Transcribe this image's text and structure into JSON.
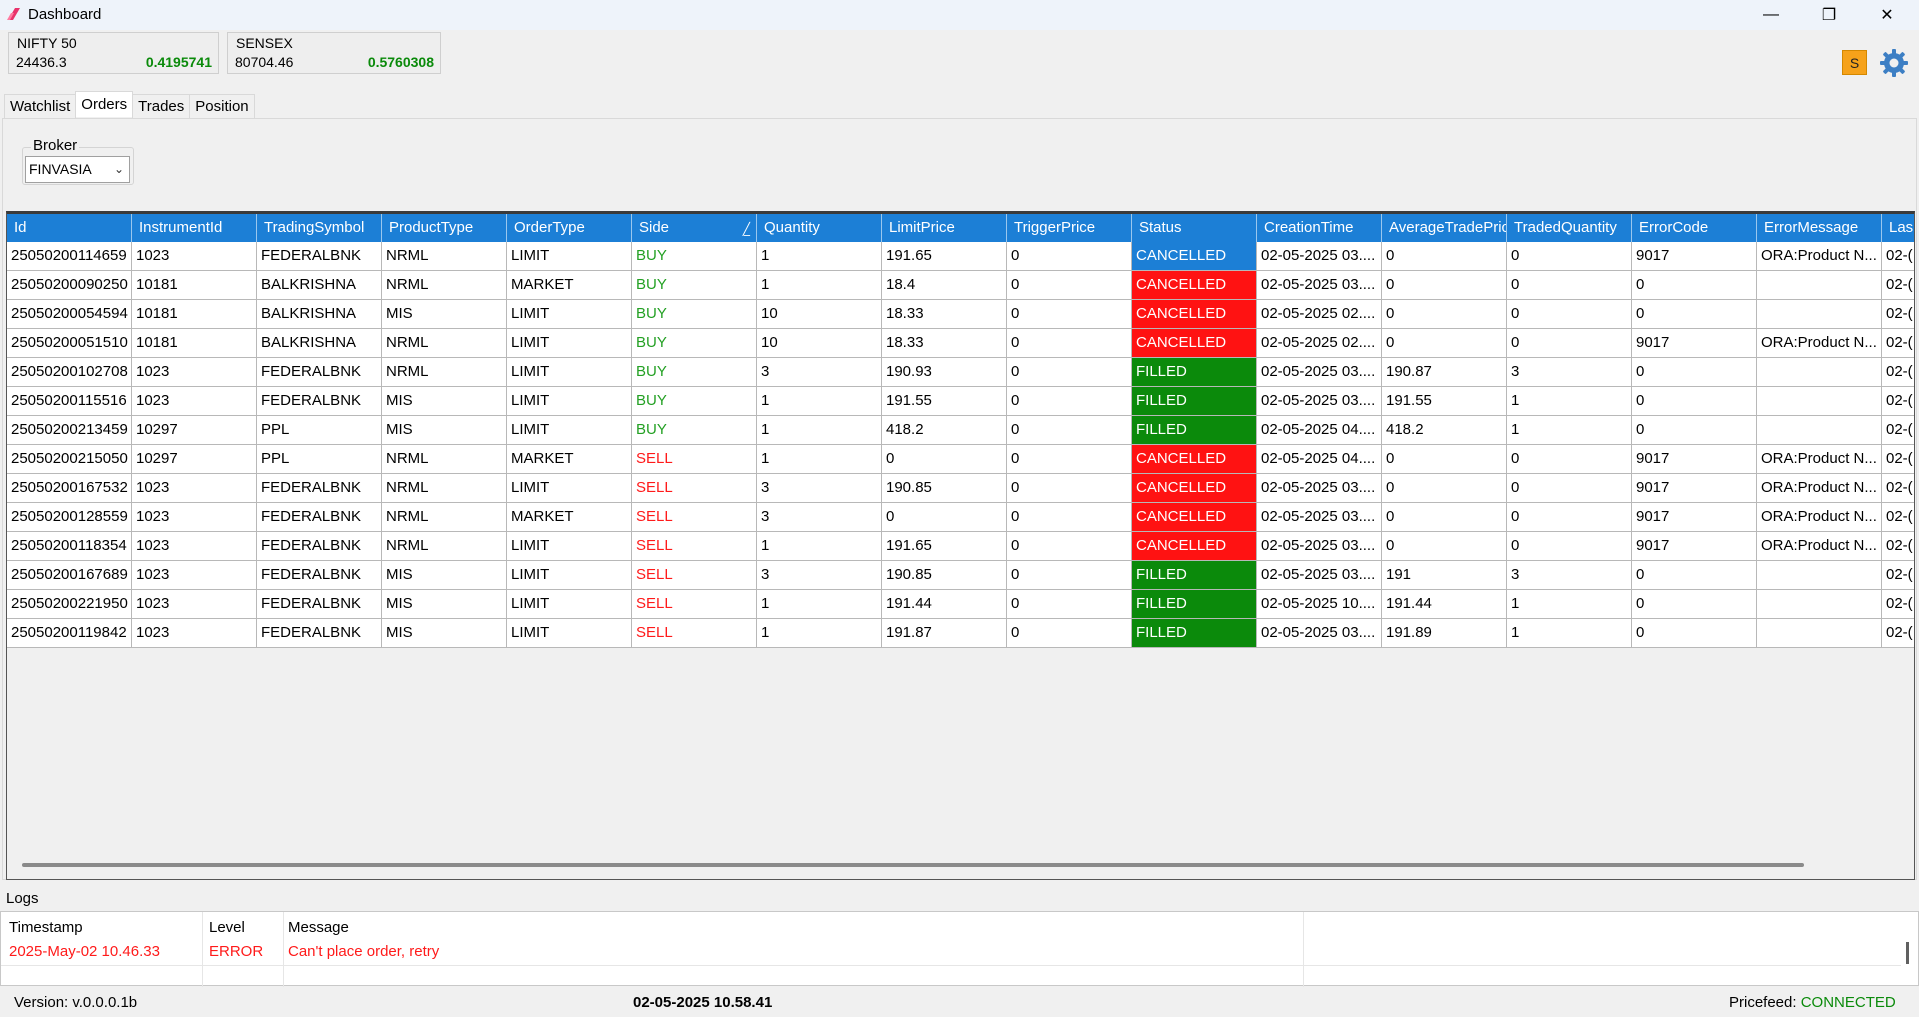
{
  "window": {
    "title": "Dashboard",
    "minimize": "—",
    "maximize": "❐",
    "close": "✕"
  },
  "indices": [
    {
      "name": "NIFTY 50",
      "value": "24436.3",
      "change": "0.4195741"
    },
    {
      "name": "SENSEX",
      "value": "80704.46",
      "change": "0.5760308"
    }
  ],
  "user_badge": "S",
  "tabs": [
    "Watchlist",
    "Orders",
    "Trades",
    "Position"
  ],
  "active_tab": "Orders",
  "broker": {
    "label": "Broker",
    "selected": "FINVASIA"
  },
  "orders_table": {
    "columns": [
      "Id",
      "InstrumentId",
      "TradingSymbol",
      "ProductType",
      "OrderType",
      "Side",
      "Quantity",
      "LimitPrice",
      "TriggerPrice",
      "Status",
      "CreationTime",
      "AverageTradePric",
      "TradedQuantity",
      "ErrorCode",
      "ErrorMessage",
      "Las"
    ],
    "sorted_column": "Side",
    "rows": [
      [
        "25050200114659",
        "1023",
        "FEDERALBNK",
        "NRML",
        "LIMIT",
        "BUY",
        "1",
        "191.65",
        "0",
        "CANCELLED",
        "02-05-2025 03....",
        "0",
        "0",
        "9017",
        "ORA:Product N...",
        "02-("
      ],
      [
        "25050200090250",
        "10181",
        "BALKRISHNA",
        "NRML",
        "MARKET",
        "BUY",
        "1",
        "18.4",
        "0",
        "CANCELLED",
        "02-05-2025 03....",
        "0",
        "0",
        "0",
        "",
        "02-("
      ],
      [
        "25050200054594",
        "10181",
        "BALKRISHNA",
        "MIS",
        "LIMIT",
        "BUY",
        "10",
        "18.33",
        "0",
        "CANCELLED",
        "02-05-2025 02....",
        "0",
        "0",
        "0",
        "",
        "02-("
      ],
      [
        "25050200051510",
        "10181",
        "BALKRISHNA",
        "NRML",
        "LIMIT",
        "BUY",
        "10",
        "18.33",
        "0",
        "CANCELLED",
        "02-05-2025 02....",
        "0",
        "0",
        "9017",
        "ORA:Product N...",
        "02-("
      ],
      [
        "25050200102708",
        "1023",
        "FEDERALBNK",
        "NRML",
        "LIMIT",
        "BUY",
        "3",
        "190.93",
        "0",
        "FILLED",
        "02-05-2025 03....",
        "190.87",
        "3",
        "0",
        "",
        "02-("
      ],
      [
        "25050200115516",
        "1023",
        "FEDERALBNK",
        "MIS",
        "LIMIT",
        "BUY",
        "1",
        "191.55",
        "0",
        "FILLED",
        "02-05-2025 03....",
        "191.55",
        "1",
        "0",
        "",
        "02-("
      ],
      [
        "25050200213459",
        "10297",
        "PPL",
        "MIS",
        "LIMIT",
        "BUY",
        "1",
        "418.2",
        "0",
        "FILLED",
        "02-05-2025 04....",
        "418.2",
        "1",
        "0",
        "",
        "02-("
      ],
      [
        "25050200215050",
        "10297",
        "PPL",
        "NRML",
        "MARKET",
        "SELL",
        "1",
        "0",
        "0",
        "CANCELLED",
        "02-05-2025 04....",
        "0",
        "0",
        "9017",
        "ORA:Product N...",
        "02-("
      ],
      [
        "25050200167532",
        "1023",
        "FEDERALBNK",
        "NRML",
        "LIMIT",
        "SELL",
        "3",
        "190.85",
        "0",
        "CANCELLED",
        "02-05-2025 03....",
        "0",
        "0",
        "9017",
        "ORA:Product N...",
        "02-("
      ],
      [
        "25050200128559",
        "1023",
        "FEDERALBNK",
        "NRML",
        "MARKET",
        "SELL",
        "3",
        "0",
        "0",
        "CANCELLED",
        "02-05-2025 03....",
        "0",
        "0",
        "9017",
        "ORA:Product N...",
        "02-("
      ],
      [
        "25050200118354",
        "1023",
        "FEDERALBNK",
        "NRML",
        "LIMIT",
        "SELL",
        "1",
        "191.65",
        "0",
        "CANCELLED",
        "02-05-2025 03....",
        "0",
        "0",
        "9017",
        "ORA:Product N...",
        "02-("
      ],
      [
        "25050200167689",
        "1023",
        "FEDERALBNK",
        "MIS",
        "LIMIT",
        "SELL",
        "3",
        "190.85",
        "0",
        "FILLED",
        "02-05-2025 03....",
        "191",
        "3",
        "0",
        "",
        "02-("
      ],
      [
        "25050200221950",
        "1023",
        "FEDERALBNK",
        "MIS",
        "LIMIT",
        "SELL",
        "1",
        "191.44",
        "0",
        "FILLED",
        "02-05-2025 10....",
        "191.44",
        "1",
        "0",
        "",
        "02-("
      ],
      [
        "25050200119842",
        "1023",
        "FEDERALBNK",
        "MIS",
        "LIMIT",
        "SELL",
        "1",
        "191.87",
        "0",
        "FILLED",
        "02-05-2025 03....",
        "191.89",
        "1",
        "0",
        "",
        "02-("
      ]
    ],
    "selected_row": 0
  },
  "logs": {
    "label": "Logs",
    "columns": [
      "Timestamp",
      "Level",
      "Message"
    ],
    "entries": [
      {
        "timestamp": "2025-May-02 10.46.33",
        "level": "ERROR",
        "message": "Can't place order, retry"
      }
    ]
  },
  "status_bar": {
    "version": "Version: v.0.0.0.1b",
    "datetime": "02-05-2025 10.58.41",
    "pricefeed_label": "Pricefeed:",
    "pricefeed_status": "CONNECTED"
  },
  "colors": {
    "header_blue": "#1c7fd6",
    "cancelled_red": "#ff1212",
    "filled_green": "#0b8a0b",
    "buy_green": "#23a023",
    "sell_red": "#ff1a1a",
    "accent_orange": "#f6a21a",
    "gear_blue": "#3d7fc4"
  },
  "icons": [
    "app-logo-icon",
    "minimize-icon",
    "maximize-icon",
    "close-icon",
    "gear-icon",
    "chevron-down-icon",
    "sort-icon"
  ]
}
